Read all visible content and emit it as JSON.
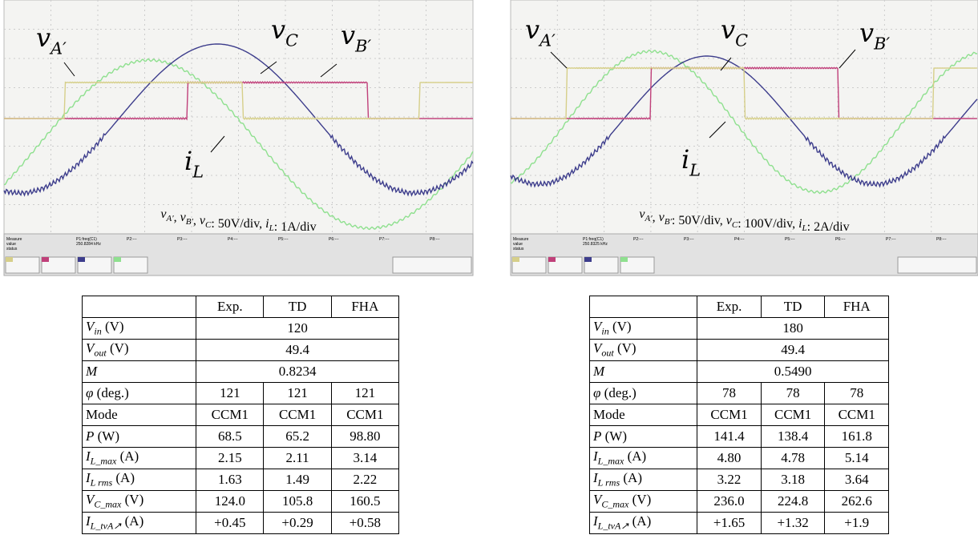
{
  "panels": [
    {
      "scope": {
        "labels": [
          {
            "sym": "v",
            "sub": "A′"
          },
          {
            "sym": "v",
            "sub": "C"
          },
          {
            "sym": "v",
            "sub": "B′"
          },
          {
            "sym": "i",
            "sub": "L"
          }
        ],
        "caption": [
          {
            "sym": "v",
            "sub": "A′"
          },
          ", ",
          {
            "sym": "v",
            "sub": "B′"
          },
          ", ",
          {
            "sym": "v",
            "sub": "C"
          },
          ": 50V/div, ",
          {
            "sym": "i",
            "sub": "L"
          },
          ": 1A/div"
        ],
        "status": {
          "measure": [
            "Measure",
            "value",
            "status"
          ],
          "params": [
            "P1:freq(C1)",
            "P2:---",
            "P3:---",
            "P4:---",
            "P5:---",
            "P6:---",
            "P7:---",
            "P8:---"
          ],
          "freq": "250.8284 kHz"
        }
      },
      "table": {
        "header": [
          "Exp.",
          "TD",
          "FHA"
        ],
        "rows": [
          {
            "label": {
              "sym": "V",
              "sub": "in",
              "unit": " (V)"
            },
            "cells": [
              "120"
            ]
          },
          {
            "label": {
              "sym": "V",
              "sub": "out",
              "unit": " (V)"
            },
            "cells": [
              "49.4"
            ]
          },
          {
            "label": {
              "sym": "M"
            },
            "cells": [
              "0.8234"
            ]
          },
          {
            "label": {
              "sym": "φ",
              "unit": " (deg.)"
            },
            "cells": [
              "121",
              "121",
              "121"
            ]
          },
          {
            "label": {
              "text": "Mode"
            },
            "cells": [
              "CCM1",
              "CCM1",
              "CCM1"
            ]
          },
          {
            "label": {
              "sym": "P",
              "unit": " (W)"
            },
            "cells": [
              "68.5",
              "65.2",
              "98.80"
            ]
          },
          {
            "label": {
              "sym": "I",
              "sub": "L_max",
              "unit": " (A)"
            },
            "cells": [
              "2.15",
              "2.11",
              "3.14"
            ]
          },
          {
            "label": {
              "sym": "I",
              "sub": "L rms",
              "unit": " (A)"
            },
            "cells": [
              "1.63",
              "1.49",
              "2.22"
            ]
          },
          {
            "label": {
              "sym": "V",
              "sub": "C_max",
              "unit": " (V)"
            },
            "cells": [
              "124.0",
              "105.8",
              "160.5"
            ]
          },
          {
            "label": {
              "sym": "I",
              "sub": "L_tvA↗",
              "unit": " (A)"
            },
            "cells": [
              "+0.45",
              "+0.29",
              "+0.58"
            ]
          }
        ]
      }
    },
    {
      "scope": {
        "labels": [
          {
            "sym": "v",
            "sub": "A′"
          },
          {
            "sym": "v",
            "sub": "C"
          },
          {
            "sym": "v",
            "sub": "B′"
          },
          {
            "sym": "i",
            "sub": "L"
          }
        ],
        "caption": [
          {
            "sym": "v",
            "sub": "A′"
          },
          ", ",
          {
            "sym": "v",
            "sub": "B′"
          },
          ": 50V/div, ",
          {
            "sym": "v",
            "sub": "C"
          },
          ": 100V/div, ",
          {
            "sym": "i",
            "sub": "L"
          },
          ": 2A/div"
        ],
        "status": {
          "measure": [
            "Measure",
            "value",
            "status"
          ],
          "params": [
            "P1:freq(C1)",
            "P2:---",
            "P3:---",
            "P4:---",
            "P5:---",
            "P6:---",
            "P7:---",
            "P8:---"
          ],
          "freq": "250.8325 kHz"
        }
      },
      "table": {
        "header": [
          "Exp.",
          "TD",
          "FHA"
        ],
        "rows": [
          {
            "label": {
              "sym": "V",
              "sub": "in",
              "unit": " (V)"
            },
            "cells": [
              "180"
            ]
          },
          {
            "label": {
              "sym": "V",
              "sub": "out",
              "unit": " (V)"
            },
            "cells": [
              "49.4"
            ]
          },
          {
            "label": {
              "sym": "M"
            },
            "cells": [
              "0.5490"
            ]
          },
          {
            "label": {
              "sym": "φ",
              "unit": " (deg.)"
            },
            "cells": [
              "78",
              "78",
              "78"
            ]
          },
          {
            "label": {
              "text": "Mode"
            },
            "cells": [
              "CCM1",
              "CCM1",
              "CCM1"
            ]
          },
          {
            "label": {
              "sym": "P",
              "unit": " (W)"
            },
            "cells": [
              "141.4",
              "138.4",
              "161.8"
            ]
          },
          {
            "label": {
              "sym": "I",
              "sub": "L_max",
              "unit": " (A)"
            },
            "cells": [
              "4.80",
              "4.78",
              "5.14"
            ]
          },
          {
            "label": {
              "sym": "I",
              "sub": "L rms",
              "unit": " (A)"
            },
            "cells": [
              "3.22",
              "3.18",
              "3.64"
            ]
          },
          {
            "label": {
              "sym": "V",
              "sub": "C_max",
              "unit": " (V)"
            },
            "cells": [
              "236.0",
              "224.8",
              "262.6"
            ]
          },
          {
            "label": {
              "sym": "I",
              "sub": "L_tvA↗",
              "unit": " (A)"
            },
            "cells": [
              "+1.65",
              "+1.32",
              "+1.9"
            ]
          }
        ]
      }
    }
  ]
}
